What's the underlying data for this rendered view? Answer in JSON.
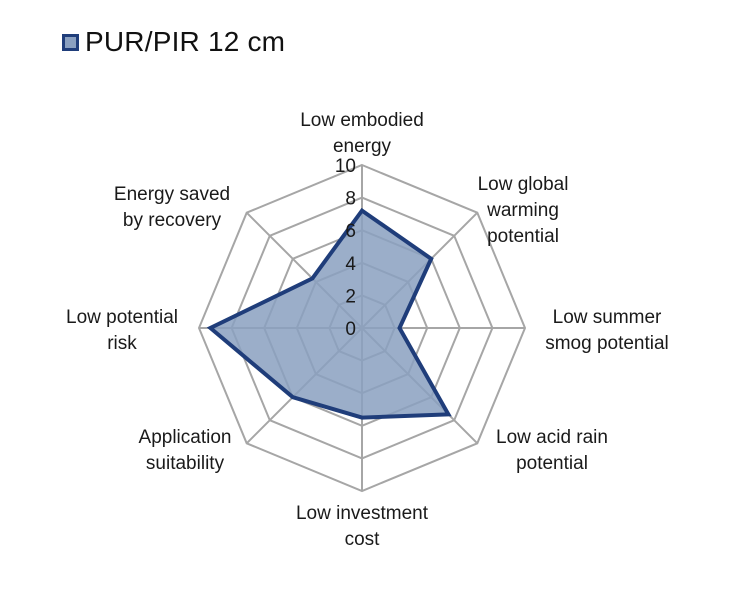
{
  "chart_data": {
    "type": "radar",
    "title": "",
    "axes": [
      "Low embodied energy",
      "Low global warming potential",
      "Low summer smog potential",
      "Low acid rain potential",
      "Low investment cost",
      "Application suitability",
      "Low potential risk",
      "Energy saved by recovery"
    ],
    "axis_label_lines": [
      [
        "Low embodied",
        "energy"
      ],
      [
        "Low global",
        "warming",
        "potential"
      ],
      [
        "Low summer",
        "smog potential"
      ],
      [
        "Low acid rain",
        "potential"
      ],
      [
        "Low investment",
        "cost"
      ],
      [
        "Application",
        "suitability"
      ],
      [
        "Low potential",
        "risk"
      ],
      [
        "Energy saved",
        "by recovery"
      ]
    ],
    "ticks": [
      "0",
      "2",
      "4",
      "6",
      "8",
      "10"
    ],
    "range": [
      0,
      10
    ],
    "legend_position": "top-left",
    "series": [
      {
        "name": "PUR/PIR 12 cm",
        "values": [
          7.2,
          6.0,
          2.3,
          7.5,
          5.5,
          6.0,
          9.3,
          4.3
        ],
        "line_color": "#1f3d7a",
        "fill_color": "#8aa0c0"
      }
    ],
    "grid_color": "#a6a6a6"
  }
}
